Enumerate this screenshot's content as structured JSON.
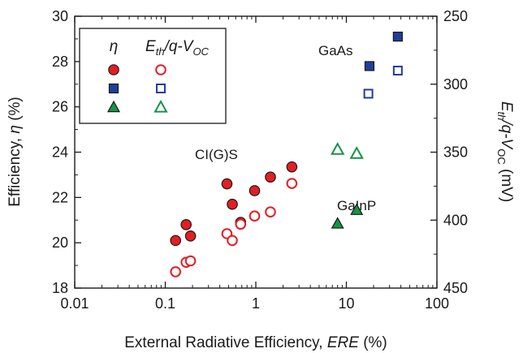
{
  "chart_data": {
    "type": "scatter",
    "x_axis": {
      "label_plain": "External Radiative Efficiency, ",
      "label_italic": "ERE",
      "label_tail": " (%)",
      "scale": "log",
      "range": [
        0.01,
        100
      ],
      "ticks": [
        0.01,
        0.1,
        1,
        10,
        100
      ],
      "tick_labels": [
        "0.01",
        "0.1",
        "1",
        "10",
        "100"
      ]
    },
    "y_left": {
      "label_plain": "Efficiency, ",
      "label_italic": "η",
      "label_tail": " (%)",
      "range": [
        18,
        30
      ],
      "ticks": [
        18,
        20,
        22,
        24,
        26,
        28,
        30
      ],
      "tick_labels": [
        "18",
        "20",
        "22",
        "24",
        "26",
        "28",
        "30"
      ]
    },
    "y_right": {
      "label_main": "E",
      "label_sub": "th",
      "label_mid": "/q-V",
      "label_sub2": "OC",
      "label_tail": " (mV)",
      "range": [
        450,
        250
      ],
      "ticks": [
        250,
        300,
        350,
        400,
        450
      ],
      "tick_labels": [
        "250",
        "300",
        "350",
        "400",
        "450"
      ]
    },
    "legend": {
      "placement": "top-left",
      "col1": "η",
      "col2_E": "E",
      "col2_sub": "th",
      "col2_mid": "/q-V",
      "col2_sub2": "OC"
    },
    "annotations": [
      "CI(G)S",
      "GaAs",
      "GaInP"
    ],
    "grid": false,
    "series": [
      {
        "material": "CI(G)S",
        "quantity": "eta",
        "axis": "left",
        "marker": "circle",
        "filled": true,
        "color": "#e31e24",
        "points": [
          [
            0.13,
            20.1
          ],
          [
            0.17,
            20.8
          ],
          [
            0.19,
            20.3
          ],
          [
            0.48,
            22.6
          ],
          [
            0.55,
            21.7
          ],
          [
            0.68,
            20.9
          ],
          [
            0.97,
            22.3
          ],
          [
            1.45,
            22.9
          ],
          [
            2.5,
            23.35
          ]
        ]
      },
      {
        "material": "CI(G)S",
        "quantity": "Eth/q-Voc",
        "axis": "right",
        "marker": "circle",
        "filled": false,
        "color": "#e31e24",
        "points": [
          [
            0.13,
            438
          ],
          [
            0.17,
            431
          ],
          [
            0.19,
            430
          ],
          [
            0.48,
            410
          ],
          [
            0.55,
            415
          ],
          [
            0.68,
            403
          ],
          [
            0.97,
            397
          ],
          [
            1.45,
            394
          ],
          [
            2.5,
            373
          ]
        ]
      },
      {
        "material": "GaAs",
        "quantity": "eta",
        "axis": "left",
        "marker": "square",
        "filled": true,
        "color": "#1f3f99",
        "points": [
          [
            18,
            27.8
          ],
          [
            37,
            29.1
          ]
        ]
      },
      {
        "material": "GaAs",
        "quantity": "Eth/q-Voc",
        "axis": "right",
        "marker": "square",
        "filled": false,
        "color": "#1f3f99",
        "points": [
          [
            17.5,
            307
          ],
          [
            37,
            290
          ]
        ]
      },
      {
        "material": "GaInP",
        "quantity": "eta",
        "axis": "left",
        "marker": "triangle",
        "filled": true,
        "color": "#159447",
        "points": [
          [
            8,
            20.85
          ],
          [
            13,
            21.45
          ]
        ]
      },
      {
        "material": "GaInP",
        "quantity": "Eth/q-Voc",
        "axis": "right",
        "marker": "triangle",
        "filled": false,
        "color": "#159447",
        "points": [
          [
            8,
            348
          ],
          [
            13,
            351
          ]
        ]
      }
    ]
  }
}
